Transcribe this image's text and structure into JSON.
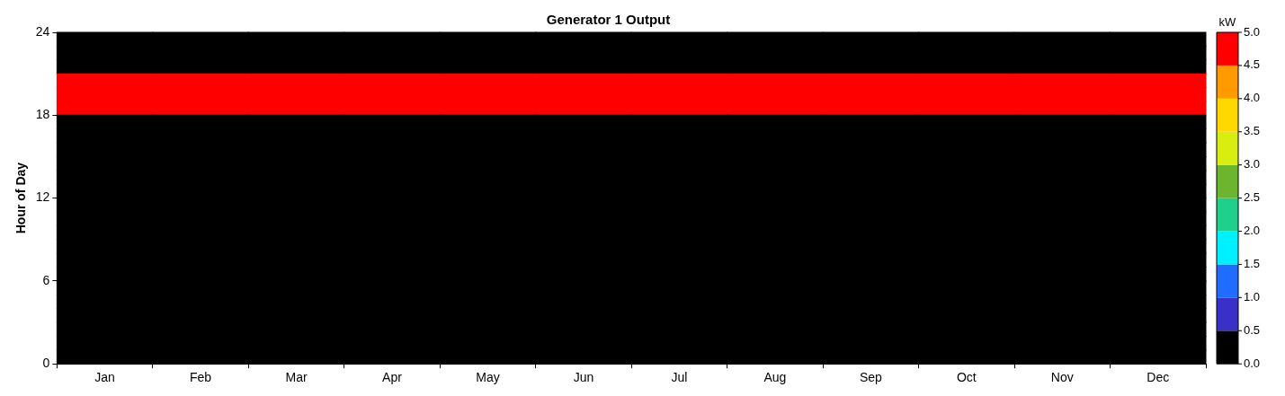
{
  "chart_data": {
    "type": "heatmap",
    "title": "Generator 1 Output",
    "ylabel": "Hour of Day",
    "clabel": "kW",
    "categories": [
      "Jan",
      "Feb",
      "Mar",
      "Apr",
      "May",
      "Jun",
      "Jul",
      "Aug",
      "Sep",
      "Oct",
      "Nov",
      "Dec"
    ],
    "ylim": [
      0,
      24
    ],
    "yticks": [
      0,
      6,
      12,
      18,
      24
    ],
    "clim": [
      0,
      5
    ],
    "cticks": [
      {
        "value": 0,
        "label": "0.0"
      },
      0.5,
      {
        "value": 1,
        "label": "1.0"
      },
      1.5,
      {
        "value": 2,
        "label": "2.0"
      },
      2.5,
      {
        "value": 3,
        "label": "3.0"
      },
      3.5,
      {
        "value": 4,
        "label": "4.0"
      },
      4.5,
      {
        "value": 5,
        "label": "5.0"
      }
    ],
    "cells": [
      [
        0,
        0,
        0,
        0,
        0,
        0,
        0,
        0,
        0,
        0,
        0,
        0
      ],
      [
        0,
        0,
        0,
        0,
        0,
        0,
        0,
        0,
        0,
        0,
        0,
        0
      ],
      [
        0,
        0,
        0,
        0,
        0,
        0,
        0,
        0,
        0,
        0,
        0,
        0
      ],
      [
        5,
        5,
        5,
        5,
        5,
        5,
        5,
        5,
        5,
        5,
        5,
        5
      ],
      [
        5,
        5,
        5,
        5,
        5,
        5,
        5,
        5,
        5,
        5,
        5,
        5
      ],
      [
        5,
        5,
        5,
        5,
        5,
        5,
        5,
        5,
        5,
        5,
        5,
        5
      ],
      [
        0,
        0,
        0,
        0,
        0,
        0,
        0,
        0,
        0,
        0,
        0,
        0
      ],
      [
        0,
        0,
        0,
        0,
        0,
        0,
        0,
        0,
        0,
        0,
        0,
        0
      ],
      [
        0,
        0,
        0,
        0,
        0,
        0,
        0,
        0,
        0,
        0,
        0,
        0
      ],
      [
        0,
        0,
        0,
        0,
        0,
        0,
        0,
        0,
        0,
        0,
        0,
        0
      ],
      [
        0,
        0,
        0,
        0,
        0,
        0,
        0,
        0,
        0,
        0,
        0,
        0
      ],
      [
        0,
        0,
        0,
        0,
        0,
        0,
        0,
        0,
        0,
        0,
        0,
        0
      ],
      [
        0,
        0,
        0,
        0,
        0,
        0,
        0,
        0,
        0,
        0,
        0,
        0
      ],
      [
        0,
        0,
        0,
        0,
        0,
        0,
        0,
        0,
        0,
        0,
        0,
        0
      ],
      [
        0,
        0,
        0,
        0,
        0,
        0,
        0,
        0,
        0,
        0,
        0,
        0
      ],
      [
        0,
        0,
        0,
        0,
        0,
        0,
        0,
        0,
        0,
        0,
        0,
        0
      ],
      [
        0,
        0,
        0,
        0,
        0,
        0,
        0,
        0,
        0,
        0,
        0,
        0
      ],
      [
        0,
        0,
        0,
        0,
        0,
        0,
        0,
        0,
        0,
        0,
        0,
        0
      ],
      [
        0,
        0,
        0,
        0,
        0,
        0,
        0,
        0,
        0,
        0,
        0,
        0
      ],
      [
        0,
        0,
        0,
        0,
        0,
        0,
        0,
        0,
        0,
        0,
        0,
        0
      ],
      [
        0,
        0,
        0,
        0,
        0,
        0,
        0,
        0,
        0,
        0,
        0,
        0
      ],
      [
        0,
        0,
        0,
        0,
        0,
        0,
        0,
        0,
        0,
        0,
        0,
        0
      ],
      [
        0,
        0,
        0,
        0,
        0,
        0,
        0,
        0,
        0,
        0,
        0,
        0
      ],
      [
        0,
        0,
        0,
        0,
        0,
        0,
        0,
        0,
        0,
        0,
        0,
        0
      ]
    ]
  }
}
